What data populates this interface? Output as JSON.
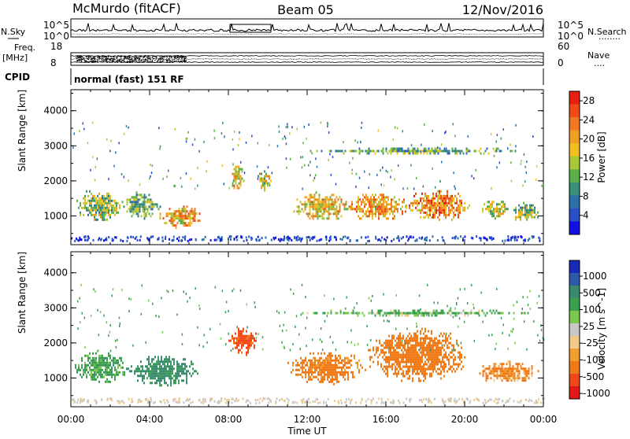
{
  "header": {
    "station": "McMurdo (fitACF)",
    "beam": "Beam 05",
    "date": "12/Nov/2016"
  },
  "summary": {
    "nsky_label": "N.Sky",
    "nsearch_label": "N.Search",
    "nsearch_marker": "........",
    "nsky_ticks": [
      "10^5",
      "10^0"
    ],
    "nsearch_ticks": [
      "10^5",
      "10^0"
    ],
    "freq_label": "Freq.",
    "freq_unit": "[MHz]",
    "freq_ticks": [
      "18",
      "8"
    ],
    "nave_label": "Nave",
    "nave_marker": "....",
    "nave_ticks": [
      "60",
      "0"
    ],
    "cpid_label": "CPID",
    "cpid_text": "normal (fast) 151 RF"
  },
  "colors": {
    "power_scale": [
      "#1010e0",
      "#2a50c8",
      "#2e6fa8",
      "#3a8f7a",
      "#5cb04a",
      "#a8c838",
      "#f0c020",
      "#f0a020",
      "#f07820",
      "#f04a18",
      "#e82010"
    ],
    "velocity_scale": [
      "#e01818",
      "#f04818",
      "#f07a18",
      "#f0a030",
      "#f0c888",
      "#c8c8c8",
      "#7ac850",
      "#3aa050",
      "#3a8a70",
      "#2e5aa8",
      "#1a2ab8"
    ]
  },
  "chart_data": [
    {
      "type": "heatmap",
      "panel": "power",
      "xlabel": "",
      "ylabel": "Slant Range [km]",
      "xlim": [
        "00:00",
        "00:00"
      ],
      "ylim": [
        180,
        4600
      ],
      "y_ticks": [
        "1000",
        "2000",
        "3000",
        "4000"
      ],
      "colorbar": {
        "label": "Power [dB]",
        "ticks": [
          "4",
          "8",
          "12",
          "16",
          "20",
          "24",
          "28"
        ],
        "range": [
          0,
          30
        ]
      },
      "echo_regions": [
        {
          "t_start": 0.2,
          "t_end": 2.6,
          "r_low": 800,
          "r_high": 1800,
          "level": 14
        },
        {
          "t_start": 2.5,
          "t_end": 4.6,
          "r_low": 900,
          "r_high": 1700,
          "level": 12
        },
        {
          "t_start": 4.5,
          "t_end": 6.8,
          "r_low": 600,
          "r_high": 1300,
          "level": 20
        },
        {
          "t_start": 8.1,
          "t_end": 8.8,
          "r_low": 1700,
          "r_high": 2500,
          "level": 18
        },
        {
          "t_start": 9.4,
          "t_end": 10.2,
          "r_low": 1700,
          "r_high": 2300,
          "level": 16
        },
        {
          "t_start": 11.3,
          "t_end": 14.3,
          "r_low": 800,
          "r_high": 1700,
          "level": 18
        },
        {
          "t_start": 14.0,
          "t_end": 17.2,
          "r_low": 800,
          "r_high": 1700,
          "level": 20
        },
        {
          "t_start": 17.0,
          "t_end": 20.3,
          "r_low": 800,
          "r_high": 1800,
          "level": 22
        },
        {
          "t_start": 20.8,
          "t_end": 22.2,
          "r_low": 900,
          "r_high": 1500,
          "level": 16
        },
        {
          "t_start": 22.4,
          "t_end": 23.8,
          "r_low": 800,
          "r_high": 1400,
          "level": 14
        },
        {
          "t_start": 11.5,
          "t_end": 23.5,
          "r_low": 2750,
          "r_high": 2950,
          "level": 12
        }
      ]
    },
    {
      "type": "heatmap",
      "panel": "velocity",
      "xlabel": "Time UT",
      "ylabel": "Slant Range [km]",
      "x_ticks": [
        "00:00",
        "04:00",
        "08:00",
        "12:00",
        "16:00",
        "20:00",
        "00:00"
      ],
      "ylim": [
        180,
        4600
      ],
      "y_ticks": [
        "1000",
        "2000",
        "3000",
        "4000"
      ],
      "colorbar": {
        "label": "Velocity [m s^-1]",
        "ticks": [
          "1000",
          "500",
          "100",
          "25",
          "-25",
          "-100",
          "-500",
          "-1000"
        ]
      },
      "echo_regions": [
        {
          "t_start": 0.2,
          "t_end": 2.8,
          "r_low": 800,
          "r_high": 1800,
          "velocity": 150
        },
        {
          "t_start": 2.8,
          "t_end": 6.6,
          "r_low": 700,
          "r_high": 1700,
          "velocity": 300
        },
        {
          "t_start": 8.0,
          "t_end": 9.5,
          "r_low": 1600,
          "r_high": 2500,
          "velocity": -500
        },
        {
          "t_start": 11.0,
          "t_end": 15.0,
          "r_low": 800,
          "r_high": 1800,
          "velocity": -200
        },
        {
          "t_start": 15.0,
          "t_end": 20.2,
          "r_low": 800,
          "r_high": 2500,
          "velocity": -250
        },
        {
          "t_start": 20.5,
          "t_end": 23.9,
          "r_low": 800,
          "r_high": 1500,
          "velocity": -150
        },
        {
          "t_start": 11.5,
          "t_end": 23.5,
          "r_low": 2750,
          "r_high": 2950,
          "velocity": 100
        }
      ]
    }
  ]
}
